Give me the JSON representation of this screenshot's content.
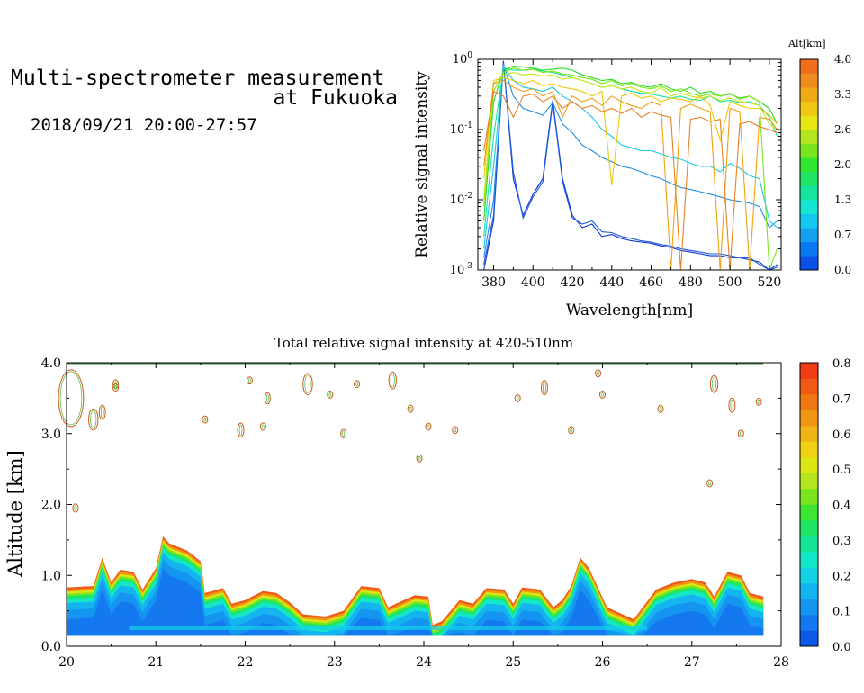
{
  "header": {
    "title_line1": "Multi-spectrometer measurement",
    "title_line2": "at Fukuoka",
    "date_range": "2018/09/21 20:00-27:57"
  },
  "chart_data": [
    {
      "type": "line",
      "title": "",
      "xlabel": "Wavelength[nm]",
      "ylabel": "Relative signal intensity",
      "yscale": "log",
      "xlim": [
        372,
        526
      ],
      "ylim": [
        0.001,
        1
      ],
      "x_ticks": [
        "380",
        "400",
        "420",
        "440",
        "460",
        "480",
        "500",
        "520"
      ],
      "y_ticks": [
        "10-3",
        "10-2",
        "10-1",
        "100"
      ],
      "x": [
        375,
        380,
        385,
        390,
        395,
        400,
        405,
        410,
        415,
        420,
        425,
        430,
        435,
        440,
        445,
        450,
        455,
        460,
        465,
        470,
        475,
        480,
        485,
        490,
        495,
        500,
        505,
        510,
        515,
        520,
        524
      ],
      "series": [
        {
          "color": "#0a32d2",
          "values": [
            0.001,
            0.005,
            0.95,
            0.02,
            0.006,
            0.012,
            0.02,
            0.26,
            0.02,
            0.006,
            0.004,
            0.0045,
            0.003,
            0.0032,
            0.0028,
            0.0026,
            0.0025,
            0.0024,
            0.0022,
            0.0021,
            0.0019,
            0.0018,
            0.0017,
            0.0016,
            0.0016,
            0.0015,
            0.0015,
            0.0014,
            0.0013,
            0.001,
            0.0012
          ]
        },
        {
          "color": "#1e5adc",
          "values": [
            0.0012,
            0.006,
            0.9,
            0.025,
            0.0055,
            0.011,
            0.018,
            0.24,
            0.018,
            0.0055,
            0.0045,
            0.005,
            0.0035,
            0.0034,
            0.003,
            0.0028,
            0.0026,
            0.0025,
            0.0023,
            0.0022,
            0.002,
            0.0019,
            0.0018,
            0.0017,
            0.0017,
            0.0016,
            0.0015,
            0.0015,
            0.0012,
            0.001,
            0.0011
          ]
        },
        {
          "color": "#1e8ce6",
          "values": [
            0.0015,
            0.01,
            0.85,
            0.3,
            0.2,
            0.18,
            0.16,
            0.24,
            0.12,
            0.09,
            0.06,
            0.05,
            0.04,
            0.035,
            0.03,
            0.028,
            0.025,
            0.022,
            0.02,
            0.017,
            0.015,
            0.014,
            0.013,
            0.012,
            0.011,
            0.01,
            0.0095,
            0.009,
            0.008,
            0.004,
            0.005
          ]
        },
        {
          "color": "#14c8e6",
          "values": [
            0.002,
            0.03,
            0.8,
            0.5,
            0.4,
            0.38,
            0.35,
            0.4,
            0.3,
            0.25,
            0.2,
            0.15,
            0.1,
            0.08,
            0.06,
            0.055,
            0.05,
            0.05,
            0.045,
            0.04,
            0.038,
            0.033,
            0.03,
            0.03,
            0.025,
            0.033,
            0.028,
            0.022,
            0.02,
            0.005,
            0.004
          ]
        },
        {
          "color": "#14e6a0",
          "values": [
            0.003,
            0.08,
            0.75,
            0.7,
            0.7,
            0.72,
            0.68,
            0.65,
            0.6,
            0.55,
            0.5,
            0.45,
            0.4,
            0.42,
            0.38,
            0.35,
            0.33,
            0.32,
            0.3,
            0.28,
            0.3,
            0.27,
            0.26,
            0.3,
            0.25,
            0.26,
            0.24,
            0.25,
            0.22,
            0.15,
            0.08
          ]
        },
        {
          "color": "#28dc28",
          "values": [
            0.005,
            0.25,
            0.7,
            0.8,
            0.78,
            0.75,
            0.7,
            0.72,
            0.75,
            0.7,
            0.6,
            0.55,
            0.5,
            0.52,
            0.45,
            0.47,
            0.42,
            0.4,
            0.45,
            0.38,
            0.35,
            0.4,
            0.33,
            0.35,
            0.3,
            0.32,
            0.28,
            0.3,
            0.25,
            0.2,
            0.12
          ]
        },
        {
          "color": "#78e614",
          "values": [
            0.008,
            0.35,
            0.65,
            0.75,
            0.7,
            0.72,
            0.65,
            0.68,
            0.62,
            0.6,
            0.55,
            0.52,
            0.45,
            0.5,
            0.42,
            0.45,
            0.4,
            0.38,
            0.42,
            0.35,
            0.38,
            0.33,
            0.3,
            0.32,
            0.3,
            0.33,
            0.27,
            0.3,
            0.25,
            0.001,
            0.002
          ]
        },
        {
          "color": "#c8e614",
          "values": [
            0.01,
            0.45,
            0.6,
            0.65,
            0.6,
            0.62,
            0.58,
            0.6,
            0.52,
            0.55,
            0.5,
            0.45,
            0.4,
            0.42,
            0.38,
            0.4,
            0.35,
            0.33,
            0.4,
            0.3,
            0.33,
            0.3,
            0.28,
            0.3,
            0.26,
            0.28,
            0.25,
            0.24,
            0.22,
            0.12,
            0.1
          ]
        },
        {
          "color": "#f0c80a",
          "values": [
            0.02,
            0.5,
            0.55,
            0.5,
            0.45,
            0.5,
            0.42,
            0.45,
            0.4,
            0.38,
            0.35,
            0.3,
            0.35,
            0.016,
            0.3,
            0.33,
            0.28,
            0.3,
            0.25,
            0.28,
            0.27,
            0.25,
            0.3,
            0.22,
            0.07,
            0.25,
            0.22,
            0.2,
            0.2,
            0.16,
            0.12
          ]
        },
        {
          "color": "#f0a014",
          "values": [
            0.03,
            0.45,
            0.5,
            0.4,
            0.35,
            0.38,
            0.3,
            0.35,
            0.15,
            0.3,
            0.25,
            0.28,
            0.22,
            0.3,
            0.25,
            0.22,
            0.2,
            0.25,
            0.22,
            0.001,
            0.2,
            0.23,
            0.2,
            0.18,
            0.001,
            0.2,
            0.18,
            0.001,
            0.15,
            0.14,
            0.1
          ]
        },
        {
          "color": "#e68228",
          "values": [
            0.05,
            0.35,
            0.3,
            0.15,
            0.3,
            0.32,
            0.25,
            0.3,
            0.2,
            0.25,
            0.2,
            0.22,
            0.18,
            0.2,
            0.17,
            0.2,
            0.15,
            0.18,
            0.16,
            0.15,
            0.001,
            0.14,
            0.15,
            0.13,
            0.14,
            0.001,
            0.12,
            0.13,
            0.11,
            0.1,
            0.09
          ]
        }
      ],
      "colorbar": {
        "label": "Alt[km]",
        "tick_labels": [
          "0.0",
          "0.7",
          "1.3",
          "2.0",
          "2.6",
          "3.3",
          "4.0"
        ],
        "colors": [
          "#0a50e6",
          "#0a78f0",
          "#14a0f0",
          "#14c8f0",
          "#14e6d2",
          "#14e6a0",
          "#1ee664",
          "#32e632",
          "#78e61e",
          "#b4e61e",
          "#e6e614",
          "#f0c814",
          "#f0aa14",
          "#f08c1e",
          "#f06e1e"
        ]
      }
    },
    {
      "type": "heatmap",
      "title": "Total relative signal intensity at 420-510nm",
      "xlabel": "",
      "ylabel": "Altitude [km]",
      "xlim": [
        20,
        28
      ],
      "ylim": [
        0,
        4
      ],
      "x_ticks": [
        "20",
        "21",
        "22",
        "23",
        "24",
        "25",
        "26",
        "27",
        "28"
      ],
      "y_ticks": [
        "0.0",
        "1.0",
        "2.0",
        "3.0",
        "4.0"
      ],
      "data_end_hour": 27.8,
      "min_alt": 0.15,
      "cloud_top_km": [
        [
          20.0,
          0.83
        ],
        [
          20.3,
          0.85
        ],
        [
          20.4,
          1.25
        ],
        [
          20.5,
          0.9
        ],
        [
          20.6,
          1.08
        ],
        [
          20.75,
          1.05
        ],
        [
          20.85,
          0.8
        ],
        [
          21.0,
          1.1
        ],
        [
          21.08,
          1.55
        ],
        [
          21.15,
          1.45
        ],
        [
          21.35,
          1.35
        ],
        [
          21.5,
          1.2
        ],
        [
          21.55,
          0.75
        ],
        [
          21.75,
          0.82
        ],
        [
          21.85,
          0.6
        ],
        [
          22.0,
          0.65
        ],
        [
          22.2,
          0.78
        ],
        [
          22.35,
          0.75
        ],
        [
          22.5,
          0.62
        ],
        [
          22.65,
          0.45
        ],
        [
          22.9,
          0.42
        ],
        [
          23.1,
          0.5
        ],
        [
          23.3,
          0.85
        ],
        [
          23.5,
          0.82
        ],
        [
          23.6,
          0.55
        ],
        [
          23.9,
          0.72
        ],
        [
          24.05,
          0.7
        ],
        [
          24.1,
          0.3
        ],
        [
          24.2,
          0.35
        ],
        [
          24.4,
          0.65
        ],
        [
          24.55,
          0.6
        ],
        [
          24.7,
          0.82
        ],
        [
          24.9,
          0.8
        ],
        [
          25.0,
          0.6
        ],
        [
          25.1,
          0.83
        ],
        [
          25.3,
          0.8
        ],
        [
          25.45,
          0.55
        ],
        [
          25.55,
          0.65
        ],
        [
          25.65,
          0.85
        ],
        [
          25.75,
          1.25
        ],
        [
          25.85,
          1.1
        ],
        [
          26.05,
          0.55
        ],
        [
          26.35,
          0.38
        ],
        [
          26.45,
          0.55
        ],
        [
          26.6,
          0.8
        ],
        [
          26.8,
          0.9
        ],
        [
          27.0,
          0.95
        ],
        [
          27.15,
          0.9
        ],
        [
          27.25,
          0.7
        ],
        [
          27.4,
          1.05
        ],
        [
          27.55,
          1.0
        ],
        [
          27.65,
          0.75
        ],
        [
          27.8,
          0.7
        ]
      ],
      "sparse_blobs_km": [
        [
          20.05,
          3.5,
          0.4
        ],
        [
          20.3,
          3.2,
          0.15
        ],
        [
          20.4,
          3.3,
          0.1
        ],
        [
          20.55,
          3.7,
          0.06
        ],
        [
          20.1,
          1.95,
          0.06
        ],
        [
          20.55,
          3.65,
          0.05
        ],
        [
          21.55,
          3.2,
          0.05
        ],
        [
          21.95,
          3.05,
          0.1
        ],
        [
          22.25,
          3.5,
          0.08
        ],
        [
          22.05,
          3.75,
          0.05
        ],
        [
          22.2,
          3.1,
          0.05
        ],
        [
          22.7,
          3.7,
          0.15
        ],
        [
          22.95,
          3.55,
          0.05
        ],
        [
          23.1,
          3.0,
          0.06
        ],
        [
          23.25,
          3.7,
          0.05
        ],
        [
          23.65,
          3.75,
          0.12
        ],
        [
          23.85,
          3.35,
          0.05
        ],
        [
          24.05,
          3.1,
          0.05
        ],
        [
          23.95,
          2.65,
          0.05
        ],
        [
          24.35,
          3.05,
          0.05
        ],
        [
          25.05,
          3.5,
          0.05
        ],
        [
          25.35,
          3.65,
          0.1
        ],
        [
          25.65,
          3.05,
          0.05
        ],
        [
          25.95,
          3.85,
          0.05
        ],
        [
          26.0,
          3.55,
          0.05
        ],
        [
          26.65,
          3.35,
          0.05
        ],
        [
          27.25,
          3.7,
          0.12
        ],
        [
          27.45,
          3.4,
          0.1
        ],
        [
          27.55,
          3.0,
          0.05
        ],
        [
          27.75,
          3.45,
          0.05
        ],
        [
          27.2,
          2.3,
          0.05
        ]
      ],
      "colorbar": {
        "label": "",
        "tick_labels": [
          "0.0",
          "0.1",
          "0.2",
          "0.3",
          "0.4",
          "0.5",
          "0.6",
          "0.7",
          "0.8"
        ],
        "colors": [
          "#0a5ae6",
          "#1478f0",
          "#1496f0",
          "#14b4f0",
          "#14d2e6",
          "#14e6c8",
          "#14e696",
          "#1ee664",
          "#3ce632",
          "#78e61e",
          "#b4e61e",
          "#dce614",
          "#f0d214",
          "#f0b414",
          "#f09614",
          "#f07814",
          "#f05a14",
          "#f03c14"
        ]
      }
    }
  ]
}
